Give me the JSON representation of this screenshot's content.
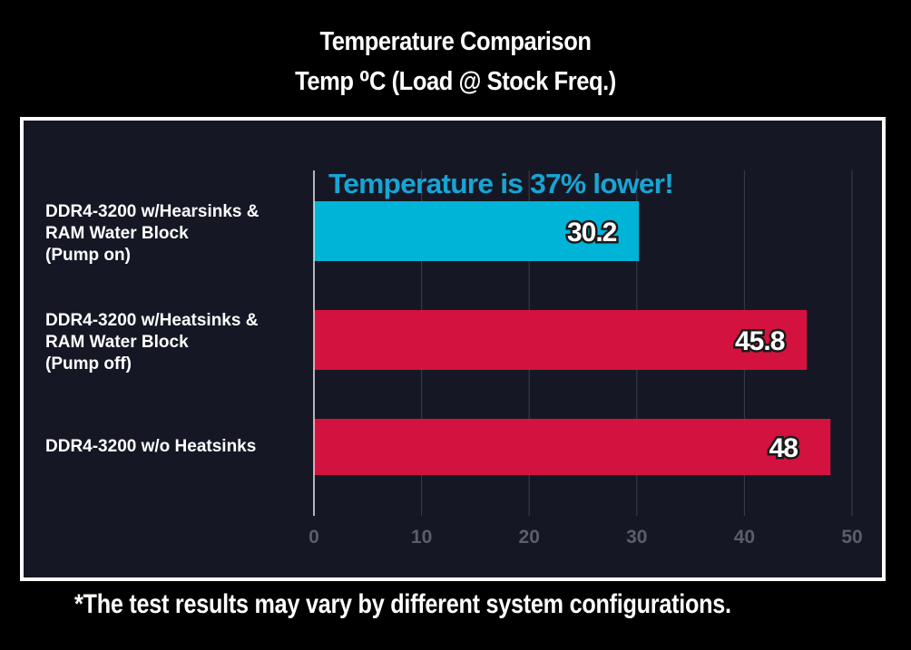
{
  "title_line1": "Temperature Comparison",
  "title_line2": "Temp ⁰C (Load @ Stock Freq.)",
  "footnote": "*The test results may vary by different system configurations.",
  "chart_data": {
    "type": "bar",
    "orientation": "horizontal",
    "categories": [
      "DDR4-3200 w/Hearsinks &\nRAM Water Block\n(Pump on)",
      "DDR4-3200 w/Heatsinks &\nRAM Water Block\n(Pump off)",
      "DDR4-3200 w/o Heatsinks"
    ],
    "values": [
      30.2,
      45.8,
      48
    ],
    "value_labels": [
      "30.2",
      "45.8",
      "48"
    ],
    "bar_colors": [
      "#00b4d8",
      "#d4123f",
      "#d4123f"
    ],
    "annotation": "Temperature is 37% lower!",
    "annotation_color": "#18a4d4",
    "xlim": [
      0,
      50
    ],
    "x_ticks": [
      0,
      10,
      20,
      30,
      40,
      50
    ],
    "grid": true,
    "title": "Temperature Comparison",
    "xlabel": "",
    "ylabel": ""
  }
}
